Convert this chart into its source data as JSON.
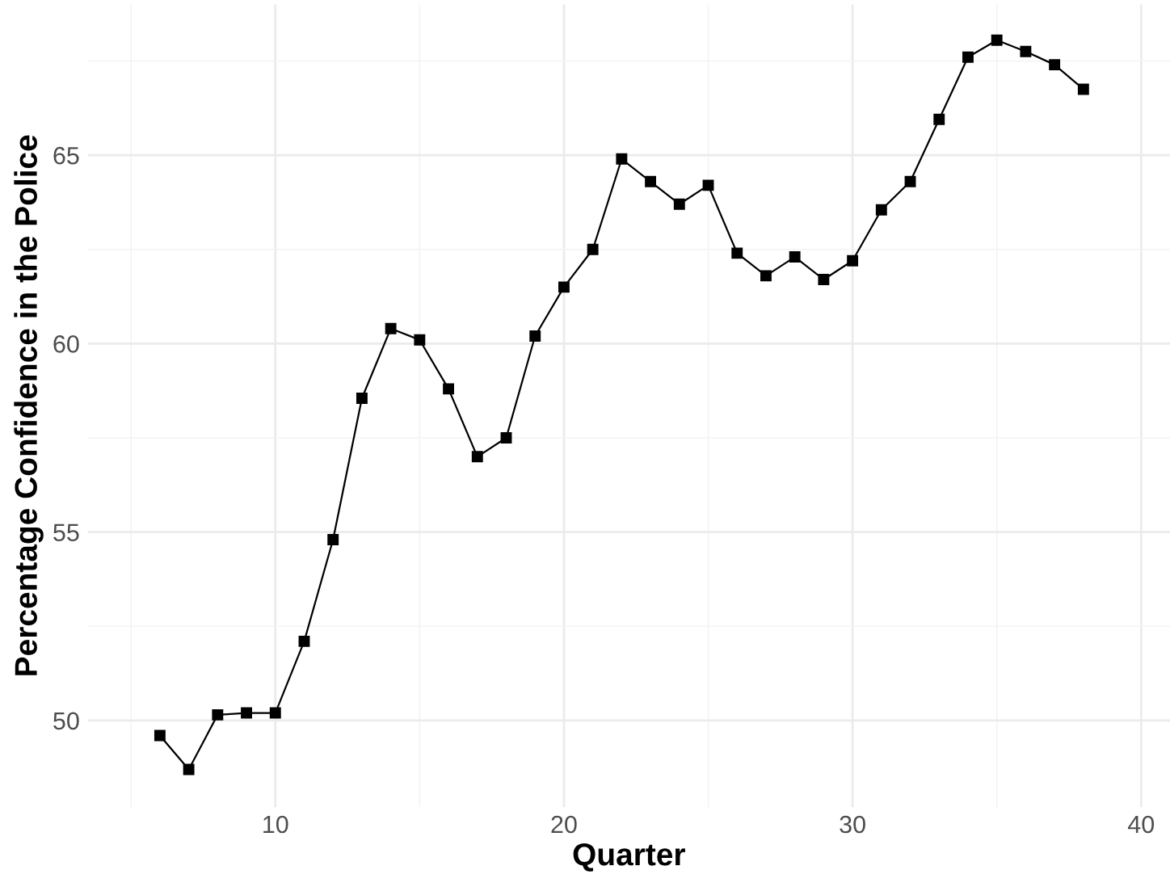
{
  "chart_data": {
    "type": "line",
    "xlabel": "Quarter",
    "ylabel": "Percentage Confidence in the Police",
    "x": [
      6,
      7,
      8,
      9,
      10,
      11,
      12,
      13,
      14,
      15,
      16,
      17,
      18,
      19,
      20,
      21,
      22,
      23,
      24,
      25,
      26,
      27,
      28,
      29,
      30,
      31,
      32,
      33,
      34,
      35,
      36,
      37,
      38
    ],
    "series": [
      {
        "color": "#000000",
        "values": [
          49.6,
          48.7,
          50.15,
          50.2,
          50.2,
          52.1,
          54.8,
          58.55,
          60.4,
          60.1,
          58.8,
          57.0,
          57.5,
          60.2,
          61.5,
          62.5,
          64.9,
          64.3,
          63.7,
          64.2,
          62.4,
          61.8,
          62.3,
          61.7,
          62.2,
          63.55,
          64.3,
          65.95,
          67.6,
          68.05,
          67.75,
          67.4,
          66.75
        ]
      }
    ],
    "xlim": [
      3.5,
      41
    ],
    "xticks": [
      10,
      20,
      30,
      40
    ],
    "ylim": [
      47.7,
      69
    ],
    "yticks": [
      50,
      55,
      60,
      65
    ],
    "grid": true,
    "marker": "square",
    "line_style": "solid"
  }
}
